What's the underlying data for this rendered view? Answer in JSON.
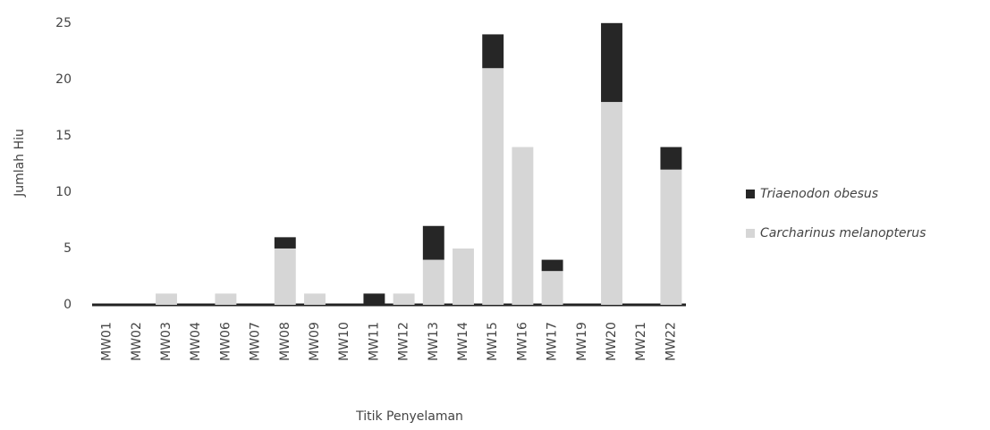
{
  "chart_data": {
    "type": "stacked_bar",
    "x_label": "Titik Penyelaman",
    "y_label": "Jumlah Hiu",
    "categories": [
      "MW01",
      "MW02",
      "MW03",
      "MW04",
      "MW06",
      "MW07",
      "MW08",
      "MW09",
      "MW10",
      "MW11",
      "MW12",
      "MW13",
      "MW14",
      "MW15",
      "MW16",
      "MW17",
      "MW19",
      "MW20",
      "MW21",
      "MW22"
    ],
    "series": [
      {
        "name": "Carcharinus melanopterus",
        "color": "#d6d6d6",
        "values": [
          0,
          0,
          1,
          0,
          1,
          0,
          5,
          1,
          0,
          0,
          1,
          4,
          5,
          21,
          14,
          3,
          0,
          18,
          0,
          12
        ]
      },
      {
        "name": "Triaenodon obesus",
        "color": "#262626",
        "values": [
          0,
          0,
          0,
          0,
          0,
          0,
          1,
          0,
          0,
          1,
          0,
          3,
          0,
          3,
          0,
          1,
          0,
          7,
          0,
          2
        ]
      }
    ],
    "ylim": [
      0,
      27
    ],
    "yticks": [
      0,
      5,
      10,
      15,
      20,
      25
    ],
    "grid": false,
    "legend": "right"
  }
}
